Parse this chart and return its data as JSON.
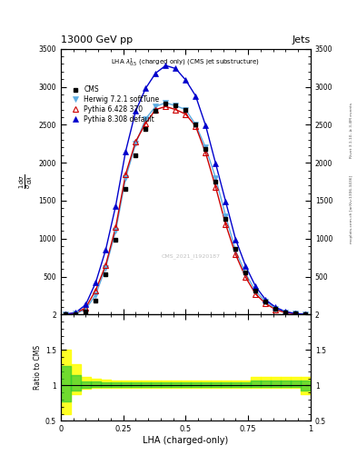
{
  "title_top": "13000 GeV pp",
  "title_right": "Jets",
  "plot_title": "LHA $\\lambda^1_{0.5}$ (charged only) (CMS jet substructure)",
  "watermark": "CMS_2021_I1920187",
  "right_label_top": "Rivet 3.1.10, ≥ 3.4M events",
  "right_label_bot": "mcplots.cern.ch [arXiv:1306.3436]",
  "xlabel_ratio": "LHA (charged-only)",
  "ylabel_ratio": "Ratio to CMS",
  "xlim": [
    0,
    1
  ],
  "ylim_main": [
    0,
    3500
  ],
  "ylim_ratio": [
    0.5,
    2.0
  ],
  "x_data": [
    0.02,
    0.06,
    0.1,
    0.14,
    0.18,
    0.22,
    0.26,
    0.3,
    0.34,
    0.38,
    0.42,
    0.46,
    0.5,
    0.54,
    0.58,
    0.62,
    0.66,
    0.7,
    0.74,
    0.78,
    0.82,
    0.86,
    0.9,
    0.94,
    0.98
  ],
  "cms_data": [
    3,
    8,
    40,
    180,
    530,
    980,
    1650,
    2100,
    2450,
    2680,
    2780,
    2750,
    2700,
    2500,
    2180,
    1750,
    1260,
    860,
    560,
    320,
    175,
    80,
    30,
    10,
    3
  ],
  "herwig_data": [
    3,
    12,
    70,
    260,
    620,
    1100,
    1800,
    2250,
    2580,
    2740,
    2790,
    2750,
    2700,
    2500,
    2200,
    1800,
    1300,
    840,
    540,
    310,
    170,
    80,
    30,
    10,
    3
  ],
  "pythia6_data": [
    4,
    18,
    90,
    320,
    650,
    1150,
    1850,
    2280,
    2520,
    2700,
    2740,
    2700,
    2640,
    2480,
    2130,
    1680,
    1190,
    790,
    490,
    270,
    145,
    65,
    25,
    8,
    2
  ],
  "pythia8_data": [
    6,
    25,
    130,
    420,
    850,
    1430,
    2150,
    2680,
    2980,
    3180,
    3280,
    3240,
    3090,
    2880,
    2490,
    1990,
    1490,
    990,
    640,
    370,
    195,
    95,
    38,
    13,
    4
  ],
  "cms_color": "#000000",
  "herwig_color": "#5DADE2",
  "pythia6_color": "#CC0000",
  "pythia8_color": "#0000CC",
  "bin_width": 0.04,
  "ratio_x": [
    0.02,
    0.06,
    0.1,
    0.14,
    0.18,
    0.22,
    0.26,
    0.3,
    0.34,
    0.38,
    0.42,
    0.46,
    0.5,
    0.54,
    0.58,
    0.62,
    0.66,
    0.7,
    0.74,
    0.78,
    0.82,
    0.86,
    0.9,
    0.94,
    0.98
  ],
  "ratio_yellow_lo": [
    0.6,
    0.88,
    0.95,
    0.96,
    0.96,
    0.96,
    0.96,
    0.96,
    0.96,
    0.96,
    0.96,
    0.96,
    0.96,
    0.96,
    0.96,
    0.96,
    0.96,
    0.96,
    0.96,
    0.96,
    0.96,
    0.96,
    0.96,
    0.96,
    0.88
  ],
  "ratio_yellow_hi": [
    1.5,
    1.3,
    1.12,
    1.09,
    1.08,
    1.07,
    1.07,
    1.07,
    1.07,
    1.07,
    1.07,
    1.07,
    1.07,
    1.07,
    1.07,
    1.07,
    1.07,
    1.07,
    1.07,
    1.12,
    1.12,
    1.12,
    1.12,
    1.12,
    1.12
  ],
  "ratio_green_lo": [
    0.78,
    0.93,
    0.97,
    0.98,
    0.98,
    0.98,
    0.98,
    0.98,
    0.98,
    0.98,
    0.98,
    0.98,
    0.98,
    0.98,
    0.98,
    0.98,
    0.98,
    0.98,
    0.98,
    0.98,
    0.98,
    0.98,
    0.98,
    0.98,
    0.93
  ],
  "ratio_green_hi": [
    1.28,
    1.14,
    1.06,
    1.05,
    1.04,
    1.04,
    1.04,
    1.04,
    1.04,
    1.04,
    1.04,
    1.04,
    1.04,
    1.04,
    1.04,
    1.04,
    1.04,
    1.04,
    1.04,
    1.07,
    1.07,
    1.07,
    1.07,
    1.07,
    1.07
  ]
}
